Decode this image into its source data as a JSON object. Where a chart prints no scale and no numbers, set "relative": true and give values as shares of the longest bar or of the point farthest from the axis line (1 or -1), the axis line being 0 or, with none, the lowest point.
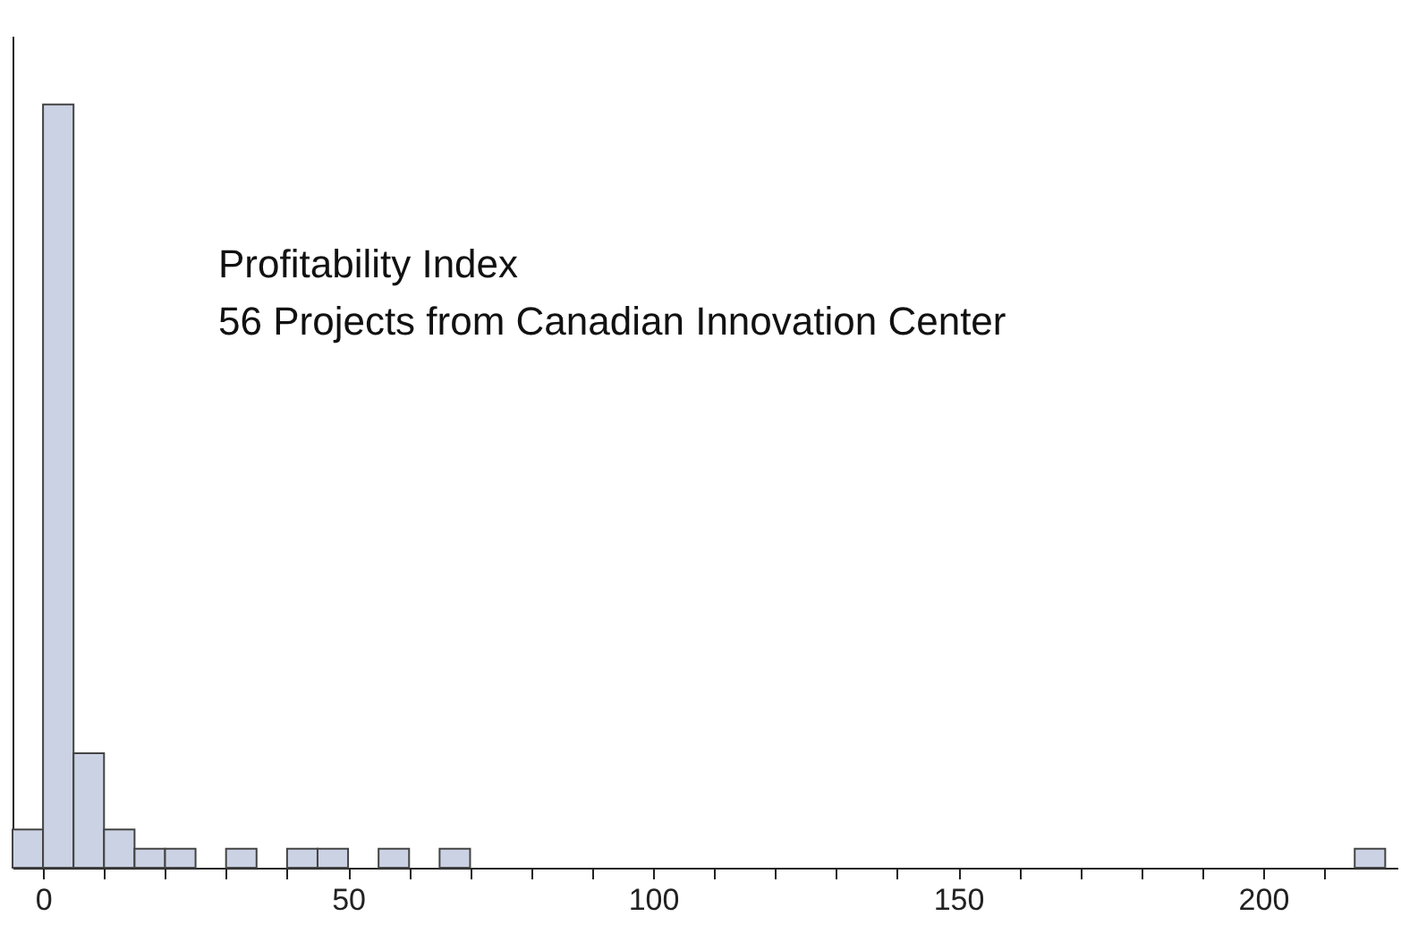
{
  "chart_data": {
    "type": "bar",
    "relative": true,
    "x": [
      -2.5,
      2.5,
      7.5,
      12.5,
      17.5,
      22.5,
      32.5,
      42.5,
      47.5,
      57.5,
      67.5,
      217.5
    ],
    "values": [
      0.05,
      1,
      0.15,
      0.05,
      0.025,
      0.025,
      0.025,
      0.025,
      0.025,
      0.025,
      0.025,
      0.025
    ],
    "color": "#cbd2e4",
    "xlim": [
      -5,
      222
    ],
    "xticks": [
      0,
      {
        "value": 10,
        "label": null
      },
      {
        "value": 20,
        "label": null
      },
      {
        "value": 30,
        "label": null
      },
      {
        "value": 40,
        "label": null
      },
      50,
      {
        "value": 60,
        "label": null
      },
      {
        "value": 70,
        "label": null
      },
      {
        "value": 80,
        "label": null
      },
      {
        "value": 90,
        "label": null
      },
      100,
      {
        "value": 110,
        "label": null
      },
      {
        "value": 120,
        "label": null
      },
      {
        "value": 130,
        "label": null
      },
      {
        "value": 140,
        "label": null
      },
      150,
      {
        "value": 160,
        "label": null
      },
      {
        "value": 170,
        "label": null
      },
      {
        "value": 180,
        "label": null
      },
      {
        "value": 190,
        "label": null
      },
      200,
      {
        "value": 210,
        "label": null
      }
    ],
    "annotations": [
      "Profitability Index",
      "56 Projects from Canadian Innovation Center"
    ],
    "grid": false,
    "legend": false
  }
}
